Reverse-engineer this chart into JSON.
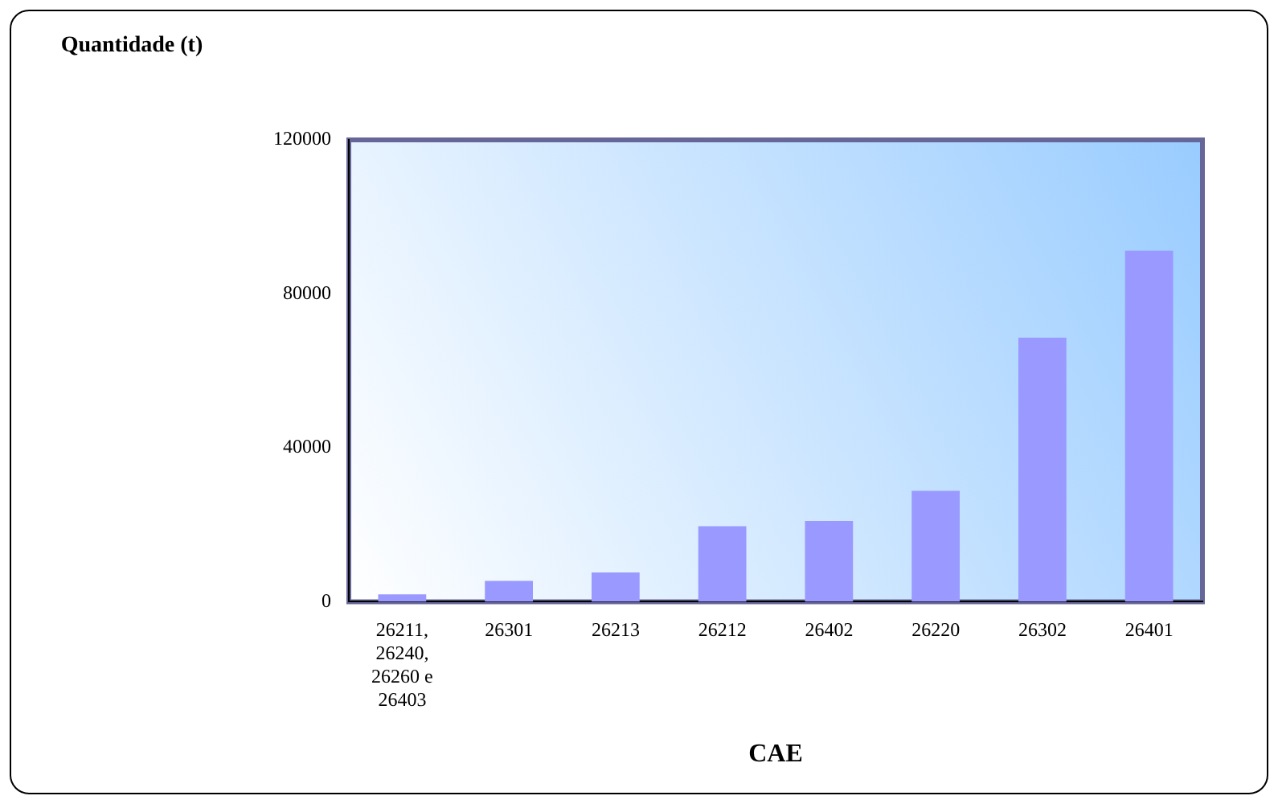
{
  "chart_data": {
    "type": "bar",
    "xlabel": "CAE",
    "ylabel": "Quantidade (t)",
    "categories": [
      "26211, 26240, 26260 e 26403",
      "26301",
      "26213",
      "26212",
      "26402",
      "26220",
      "26302",
      "26401"
    ],
    "values": [
      1900,
      5400,
      7600,
      19600,
      21000,
      28800,
      68600,
      91200
    ],
    "color": "#9999ff",
    "ylim": [
      0,
      120000
    ],
    "yticks": [
      0,
      40000,
      80000,
      120000
    ],
    "grid": false,
    "legend": false
  }
}
